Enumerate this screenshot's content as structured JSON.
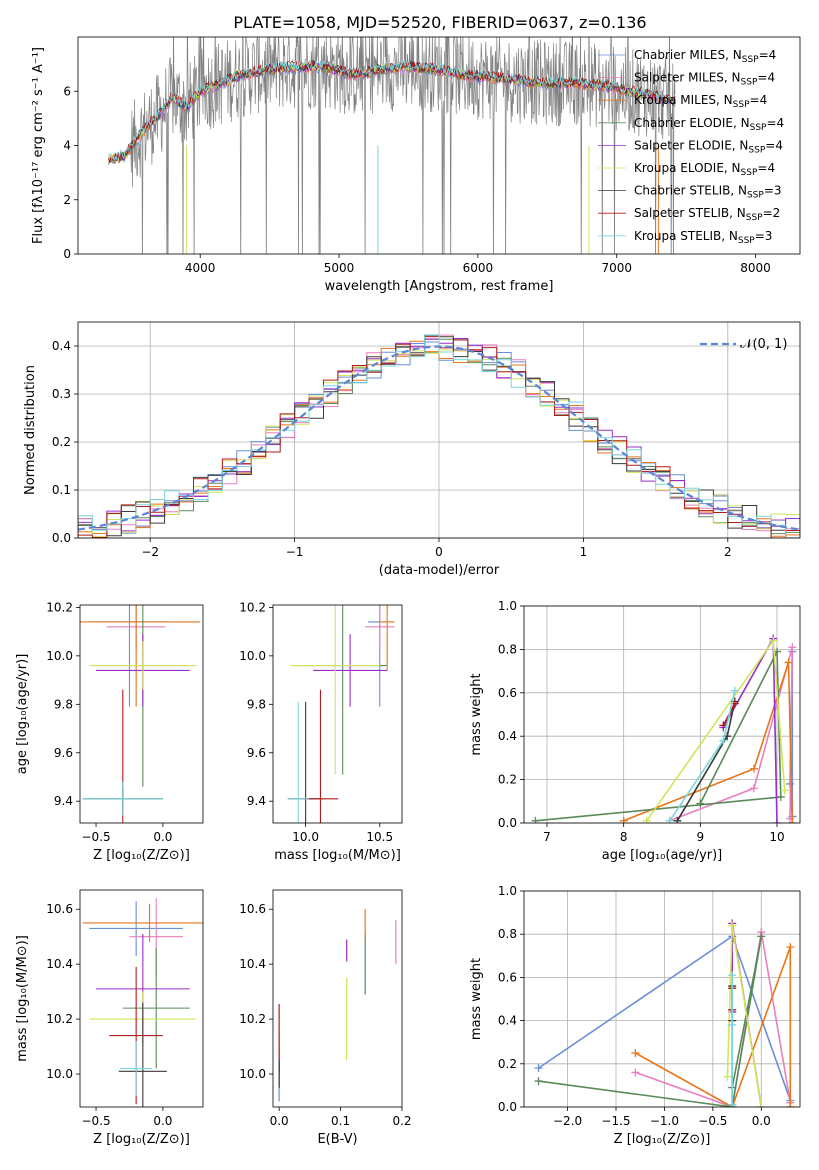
{
  "figure": {
    "title": "PLATE=1058, MJD=52520, FIBERID=0637, z=0.136"
  },
  "colors": {
    "Chabrier MILES": "#6a8fd8",
    "Salpeter MILES": "#e87fbf",
    "Kroupa MILES": "#e8761a",
    "Chabrier ELODIE": "#5a8a5a",
    "Salpeter ELODIE": "#9a2fc9",
    "Kroupa ELODIE": "#d4e35a",
    "Chabrier STELIB": "#3a3a3a",
    "Salpeter STELIB": "#b01c1c",
    "Kroupa STELIB": "#7ad6de",
    "data": "#808080",
    "normal": "#5b86d6"
  },
  "chart_data": [
    {
      "id": "spectrum",
      "type": "line",
      "xlabel": "wavelength [Angstrom, rest frame]",
      "ylabel": "Flux [fλ10⁻¹⁷ erg cm⁻² s⁻¹ A⁻¹]",
      "xlim": [
        3120,
        8320
      ],
      "ylim": [
        0,
        8
      ],
      "xticks": [
        4000,
        5000,
        6000,
        7000,
        8000
      ],
      "yticks": [
        0,
        2,
        4,
        6
      ],
      "legend": [
        {
          "model": "Chabrier MILES",
          "label": "Chabrier MILES, N",
          "sub": "SSP",
          "suffix": "=4"
        },
        {
          "model": "Salpeter MILES",
          "label": "Salpeter MILES, N",
          "sub": "SSP",
          "suffix": "=4"
        },
        {
          "model": "Kroupa MILES",
          "label": "Kroupa MILES, N",
          "sub": "SSP",
          "suffix": "=4"
        },
        {
          "model": "Chabrier ELODIE",
          "label": "Chabrier ELODIE, N",
          "sub": "SSP",
          "suffix": "=4"
        },
        {
          "model": "Salpeter ELODIE",
          "label": "Salpeter ELODIE, N",
          "sub": "SSP",
          "suffix": "=4"
        },
        {
          "model": "Kroupa ELODIE",
          "label": "Kroupa ELODIE, N",
          "sub": "SSP",
          "suffix": "=4"
        },
        {
          "model": "Chabrier STELIB",
          "label": "Chabrier STELIB, N",
          "sub": "SSP",
          "suffix": "=3"
        },
        {
          "model": "Salpeter STELIB",
          "label": "Salpeter STELIB, N",
          "sub": "SSP",
          "suffix": "=2"
        },
        {
          "model": "Kroupa STELIB",
          "label": "Kroupa STELIB, N",
          "sub": "SSP",
          "suffix": "=3"
        }
      ],
      "model_continuum": {
        "x": [
          3340,
          3450,
          3600,
          3700,
          3800,
          3900,
          4000,
          4100,
          4300,
          4500,
          4700,
          4900,
          5100,
          5300,
          5500,
          5700,
          5900,
          6100,
          6300,
          6500,
          6700,
          6900,
          7100,
          7300,
          7420
        ],
        "y": [
          3.5,
          3.6,
          4.6,
          5.1,
          5.8,
          5.4,
          6.0,
          6.2,
          6.6,
          6.8,
          6.9,
          6.9,
          6.6,
          6.8,
          6.9,
          6.8,
          6.6,
          6.5,
          6.4,
          6.3,
          6.3,
          6.2,
          6.0,
          5.8,
          5.6
        ]
      }
    },
    {
      "id": "residuals",
      "type": "line",
      "xlabel": "(data-model)/error",
      "ylabel": "Normed distribution",
      "xlim": [
        -2.5,
        2.5
      ],
      "ylim": [
        0,
        0.45
      ],
      "xticks": [
        -2,
        -1,
        0,
        1,
        2
      ],
      "yticks": [
        0.0,
        0.1,
        0.2,
        0.3,
        0.4
      ],
      "legend": "𝒩(0, 1)",
      "bin_width": 0.1
    },
    {
      "id": "age_vs_Z",
      "type": "scatter",
      "xlabel": "Z [log₁₀(Z/Z⊙)]",
      "ylabel": "age  [log₁₀(age/yr)]",
      "xlim": [
        -0.62,
        0.3
      ],
      "ylim": [
        9.31,
        10.21
      ],
      "xticks": [
        -0.5,
        0.0
      ],
      "yticks": [
        9.4,
        9.6,
        9.8,
        10.0,
        10.2
      ]
    },
    {
      "id": "age_vs_mass",
      "type": "scatter",
      "xlabel": "mass [log₁₀(M/M⊙)]",
      "ylabel": "",
      "xlim": [
        9.78,
        10.65
      ],
      "ylim": [
        9.31,
        10.21
      ],
      "xticks": [
        10.0,
        10.5
      ],
      "yticks": [
        9.4,
        9.6,
        9.8,
        10.0,
        10.2
      ]
    },
    {
      "id": "weight_vs_age",
      "type": "line",
      "xlabel": "age  [log₁₀(age/yr)]",
      "ylabel": "mass weight",
      "xlim": [
        6.7,
        10.3
      ],
      "ylim": [
        0,
        1
      ],
      "xticks": [
        7,
        8,
        9,
        10
      ],
      "yticks": [
        0.0,
        0.2,
        0.4,
        0.6,
        0.8,
        1.0
      ],
      "series": [
        {
          "model": "Chabrier MILES",
          "x": [
            10.2,
            10.17,
            10.2,
            10.2
          ],
          "y": [
            0.03,
            0.18,
            0.79,
            0.03
          ]
        },
        {
          "model": "Salpeter MILES",
          "x": [
            8.6,
            9.7,
            10.2,
            10.17
          ],
          "y": [
            0.01,
            0.16,
            0.81,
            0.02
          ]
        },
        {
          "model": "Kroupa MILES",
          "x": [
            8.0,
            9.7,
            10.15,
            10.2
          ],
          "y": [
            0.01,
            0.25,
            0.74,
            0.0
          ]
        },
        {
          "model": "Chabrier ELODIE",
          "x": [
            6.85,
            10.05,
            10.0,
            9.0
          ],
          "y": [
            0.01,
            0.12,
            0.79,
            0.09
          ]
        },
        {
          "model": "Salpeter ELODIE",
          "x": [
            9.3,
            9.95,
            10.0
          ],
          "y": [
            0.44,
            0.85,
            0.0
          ]
        },
        {
          "model": "Kroupa ELODIE",
          "x": [
            8.3,
            9.95,
            10.1
          ],
          "y": [
            0.01,
            0.84,
            0.15
          ]
        },
        {
          "model": "Chabrier STELIB",
          "x": [
            8.7,
            9.35,
            9.45
          ],
          "y": [
            0.01,
            0.4,
            0.56
          ]
        },
        {
          "model": "Salpeter STELIB",
          "x": [
            9.3,
            9.45
          ],
          "y": [
            0.45,
            0.55
          ]
        },
        {
          "model": "Kroupa STELIB",
          "x": [
            8.6,
            9.3,
            9.45
          ],
          "y": [
            0.01,
            0.38,
            0.61
          ]
        }
      ]
    },
    {
      "id": "mass_vs_Z",
      "type": "scatter",
      "xlabel": "Z [log₁₀(Z/Z⊙)]",
      "ylabel": "mass [log₁₀(M/M⊙)]",
      "xlim": [
        -0.62,
        0.3
      ],
      "ylim": [
        9.88,
        10.67
      ],
      "xticks": [
        -0.5,
        0.0
      ],
      "yticks": [
        10.0,
        10.2,
        10.4,
        10.6
      ]
    },
    {
      "id": "mass_vs_ebv",
      "type": "scatter",
      "xlabel": "E(B-V)",
      "ylabel": "",
      "xlim": [
        -0.01,
        0.2
      ],
      "ylim": [
        9.88,
        10.67
      ],
      "xticks": [
        0.0,
        0.1,
        0.2
      ],
      "yticks": [
        10.0,
        10.2,
        10.4,
        10.6
      ],
      "points": [
        {
          "model": "Chabrier MILES",
          "x": 0.0,
          "y": 10.0,
          "err": 0.2
        },
        {
          "model": "Kroupa STELIB",
          "x": 0.0,
          "y": 10.05,
          "err": 0.2
        },
        {
          "model": "Salpeter STELIB",
          "x": 0.0,
          "y": 10.13,
          "err": 0.25
        },
        {
          "model": "Chabrier STELIB",
          "x": 0.0,
          "y": 10.0,
          "err": 0.1
        },
        {
          "model": "Kroupa ELODIE",
          "x": 0.11,
          "y": 10.2,
          "err": 0.3
        },
        {
          "model": "Salpeter ELODIE",
          "x": 0.11,
          "y": 10.45,
          "err": 0.08
        },
        {
          "model": "Chabrier ELODIE",
          "x": 0.14,
          "y": 10.4,
          "err": 0.22
        },
        {
          "model": "Kroupa MILES",
          "x": 0.14,
          "y": 10.55,
          "err": 0.1
        },
        {
          "model": "Salpeter MILES",
          "x": 0.19,
          "y": 10.48,
          "err": 0.16
        }
      ]
    },
    {
      "id": "weight_vs_Z",
      "type": "line",
      "xlabel": "Z [log₁₀(Z/Z⊙)]",
      "ylabel": "mass weight",
      "xlim": [
        -2.45,
        0.4
      ],
      "ylim": [
        0,
        1
      ],
      "xticks": [
        -2.0,
        -1.5,
        -1.0,
        -0.5,
        0.0
      ],
      "yticks": [
        0.0,
        0.2,
        0.4,
        0.6,
        0.8,
        1.0
      ],
      "series": [
        {
          "model": "Chabrier MILES",
          "x": [
            -2.3,
            -0.3,
            0.3,
            0.3
          ],
          "y": [
            0.18,
            0.79,
            0.03,
            0.0
          ]
        },
        {
          "model": "Salpeter MILES",
          "x": [
            -1.3,
            -0.3,
            0.0,
            0.3
          ],
          "y": [
            0.16,
            0.0,
            0.81,
            0.02
          ]
        },
        {
          "model": "Kroupa MILES",
          "x": [
            -1.3,
            -0.3,
            0.3,
            0.3
          ],
          "y": [
            0.25,
            0.0,
            0.74,
            0.0
          ]
        },
        {
          "model": "Chabrier ELODIE",
          "x": [
            -2.3,
            -0.3,
            0.0,
            -0.3
          ],
          "y": [
            0.12,
            0.0,
            0.79,
            0.09
          ]
        },
        {
          "model": "Salpeter ELODIE",
          "x": [
            -0.3,
            -0.3,
            0.0
          ],
          "y": [
            0.44,
            0.85,
            0.0
          ]
        },
        {
          "model": "Kroupa ELODIE",
          "x": [
            -0.35,
            -0.3,
            0.0
          ],
          "y": [
            0.14,
            0.84,
            0.0
          ]
        },
        {
          "model": "Chabrier STELIB",
          "x": [
            -0.3,
            -0.3,
            -0.3
          ],
          "y": [
            0.4,
            0.56,
            0.01
          ]
        },
        {
          "model": "Salpeter STELIB",
          "x": [
            -0.3,
            -0.3
          ],
          "y": [
            0.45,
            0.55
          ]
        },
        {
          "model": "Kroupa STELIB",
          "x": [
            -0.3,
            -0.3,
            -0.3
          ],
          "y": [
            0.38,
            0.61,
            0.01
          ]
        }
      ]
    }
  ]
}
